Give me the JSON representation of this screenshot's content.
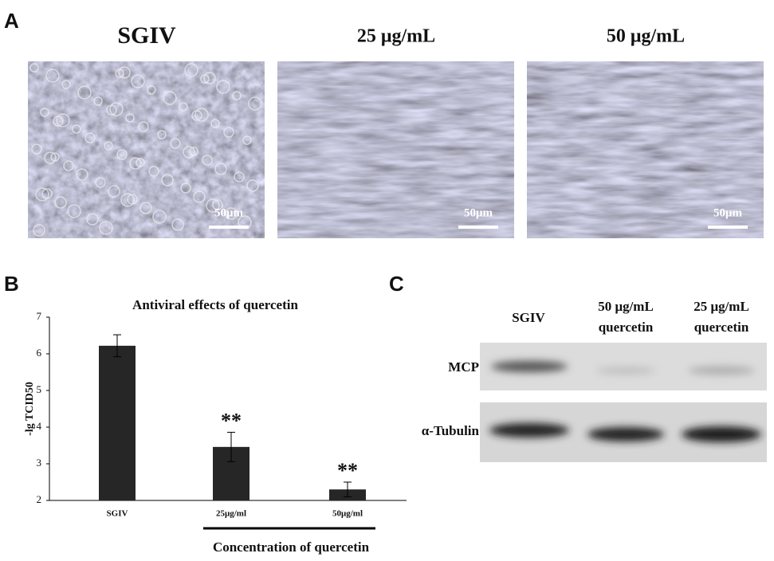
{
  "panel_labels": [
    "A",
    "B",
    "C"
  ],
  "micrographs": [
    {
      "title": "SGIV",
      "scale_bar": "50μm"
    },
    {
      "title": "25 μg/mL",
      "scale_bar": "50μm"
    },
    {
      "title": "50 μg/mL",
      "scale_bar": "50μm"
    }
  ],
  "chart_data": {
    "type": "bar",
    "title": "Antiviral effects of quercetin",
    "ylabel": "-lg TCID50",
    "xlabel": "Concentration of quercetin",
    "categories": [
      "SGIV",
      "25μg/ml",
      "50μg/ml"
    ],
    "values": [
      6.22,
      3.46,
      2.3
    ],
    "errors": [
      0.3,
      0.4,
      0.2
    ],
    "significance": [
      null,
      "**",
      "**"
    ],
    "color": "#262626",
    "ylim": [
      2,
      7
    ],
    "yticks": [
      2,
      3,
      4,
      5,
      6,
      7
    ]
  },
  "blot": {
    "lanes": [
      [
        "SGIV"
      ],
      [
        "50 μg/mL",
        "quercetin"
      ],
      [
        "25 μg/mL",
        "quercetin"
      ]
    ],
    "rows": [
      "MCP",
      "α-Tubulin"
    ]
  }
}
